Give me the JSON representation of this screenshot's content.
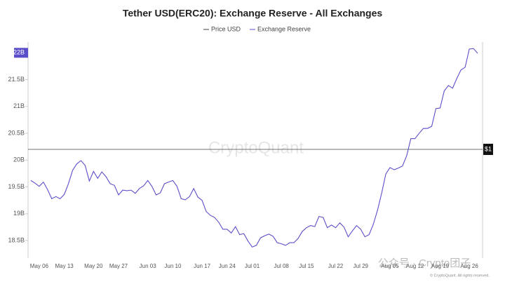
{
  "chart_data": {
    "type": "line",
    "title": "Tether USD(ERC20): Exchange Reserve - All Exchanges",
    "watermark": "CryptoQuant",
    "footer": "© CryptoQuant. All rights reserved.",
    "overlay_text": "公众号 · Crypto团子",
    "legend": "top",
    "categories": [
      null,
      null,
      "May 06",
      null,
      null,
      null,
      null,
      null,
      "May 13",
      null,
      null,
      null,
      null,
      null,
      null,
      "May 20",
      null,
      null,
      null,
      null,
      null,
      "May 27",
      null,
      null,
      null,
      null,
      null,
      null,
      "Jun 03",
      null,
      null,
      null,
      null,
      null,
      "Jun 10",
      null,
      null,
      null,
      null,
      null,
      null,
      "Jun 17",
      null,
      null,
      null,
      null,
      null,
      "Jun 24",
      null,
      null,
      null,
      null,
      null,
      "Jul 01",
      null,
      null,
      null,
      null,
      null,
      null,
      "Jul 08",
      null,
      null,
      null,
      null,
      null,
      "Jul 15",
      null,
      null,
      null,
      null,
      null,
      null,
      "Jul 22",
      null,
      null,
      null,
      null,
      null,
      "Jul 29",
      null,
      null,
      null,
      null,
      null,
      null,
      "Aug 05",
      null,
      null,
      null,
      null,
      null,
      "Aug 12",
      null,
      null,
      null,
      null,
      null,
      "Aug 19",
      null,
      null,
      null,
      null,
      null,
      null,
      "Aug 26",
      null,
      null
    ],
    "series": [
      {
        "name": "Price USD",
        "color": "#444444",
        "axis": "y2",
        "values": [
          1,
          1,
          1,
          1,
          1,
          1,
          1,
          1,
          1,
          1,
          1,
          1,
          1,
          1,
          1,
          1,
          1,
          1,
          1,
          1,
          1,
          1,
          1,
          1,
          1,
          1,
          1,
          1,
          1,
          1,
          1,
          1,
          1,
          1,
          1,
          1,
          1,
          1,
          1,
          1,
          1,
          1,
          1,
          1,
          1,
          1,
          1,
          1,
          1,
          1,
          1,
          1,
          1,
          1,
          1,
          1,
          1,
          1,
          1,
          1,
          1,
          1,
          1,
          1,
          1,
          1,
          1,
          1,
          1,
          1,
          1,
          1,
          1,
          1,
          1,
          1,
          1,
          1,
          1,
          1,
          1,
          1,
          1,
          1,
          1,
          1,
          1,
          1,
          1,
          1,
          1,
          1,
          1,
          1,
          1,
          1,
          1,
          1,
          1,
          1,
          1,
          1,
          1,
          1,
          1,
          1,
          1,
          1
        ]
      },
      {
        "name": "Exchange Reserve",
        "color": "#5b4fc9",
        "values": [
          19.62,
          19.57,
          19.51,
          19.59,
          19.45,
          19.28,
          19.32,
          19.28,
          19.36,
          19.56,
          19.81,
          19.93,
          19.99,
          19.9,
          19.61,
          19.79,
          19.66,
          19.78,
          19.69,
          19.56,
          19.53,
          19.35,
          19.44,
          19.43,
          19.44,
          19.38,
          19.47,
          19.52,
          19.62,
          19.51,
          19.35,
          19.39,
          19.56,
          19.59,
          19.62,
          19.51,
          19.28,
          19.26,
          19.32,
          19.47,
          19.31,
          19.25,
          19.04,
          18.97,
          18.93,
          18.84,
          18.71,
          18.71,
          18.64,
          18.76,
          18.61,
          18.63,
          18.49,
          18.38,
          18.41,
          18.55,
          18.59,
          18.62,
          18.58,
          18.46,
          18.44,
          18.41,
          18.46,
          18.46,
          18.54,
          18.67,
          18.74,
          18.78,
          18.76,
          18.95,
          18.93,
          18.74,
          18.79,
          18.74,
          18.83,
          18.75,
          18.57,
          18.68,
          18.78,
          18.71,
          18.57,
          18.61,
          18.8,
          19.06,
          19.38,
          19.74,
          19.86,
          19.82,
          19.85,
          19.89,
          20.08,
          20.4,
          20.4,
          20.5,
          20.59,
          20.59,
          20.63,
          20.96,
          20.97,
          21.29,
          21.39,
          21.34,
          21.52,
          21.68,
          21.73,
          22.07,
          22.08,
          21.99
        ]
      }
    ],
    "ylim": [
      18.2,
      22.2
    ],
    "yticks": [
      {
        "value": 18.5,
        "label": "18.5B"
      },
      {
        "value": 19,
        "label": "19B"
      },
      {
        "value": 19.5,
        "label": "19.5B"
      },
      {
        "value": 20,
        "label": "20B"
      },
      {
        "value": 20.5,
        "label": "20.5B"
      },
      {
        "value": 21,
        "label": "21B"
      },
      {
        "value": 21.5,
        "label": "21.5B"
      },
      {
        "value": 22,
        "label": "22B"
      }
    ],
    "y2lim": [
      0.99,
      1.01
    ],
    "y2ticks": [
      {
        "value": 1,
        "label": "$1"
      }
    ]
  }
}
